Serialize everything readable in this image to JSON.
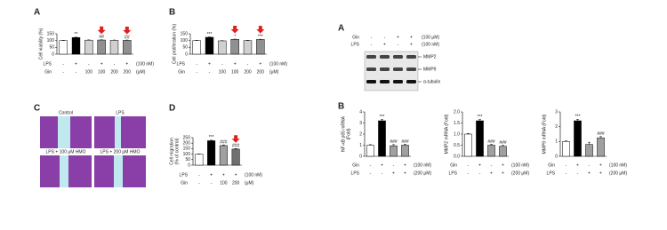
{
  "panel_labels": [
    "A",
    "B",
    "C",
    "D",
    "A",
    "B"
  ],
  "chart_data": [
    {
      "type": "bar",
      "ylabel": [
        "Cell viability (%)"
      ],
      "ylim": [
        0,
        150
      ],
      "yticks": [
        0,
        50,
        100,
        150
      ],
      "values": [
        100,
        122,
        103,
        104,
        102,
        102
      ],
      "errors": [
        2,
        3,
        2,
        2,
        2,
        2
      ],
      "colors": [
        "#ffffff",
        "#000000",
        "#d0d0d0",
        "#909090",
        "#d0d0d0",
        "#909090"
      ],
      "annotations": [
        null,
        "**",
        null,
        "##",
        null,
        "##"
      ],
      "arrows": [
        false,
        false,
        false,
        true,
        false,
        true
      ],
      "arrow_color": "#e0201b",
      "conditions": [
        {
          "name": "LPS",
          "marks": [
            "-",
            "+",
            "-",
            "+",
            "-",
            "+"
          ],
          "unit": "(100 nM)"
        },
        {
          "name": "Gin",
          "marks": [
            "-",
            "-",
            "100",
            "100",
            "200",
            "200"
          ],
          "unit": "(μM)"
        }
      ]
    },
    {
      "type": "bar",
      "ylabel": [
        "Cell proliferation (%)"
      ],
      "ylim": [
        0,
        150
      ],
      "yticks": [
        0,
        50,
        100,
        150
      ],
      "values": [
        100,
        124,
        98,
        109,
        100,
        108
      ],
      "errors": [
        2,
        3,
        2,
        2,
        2,
        2
      ],
      "colors": [
        "#ffffff",
        "#000000",
        "#d0d0d0",
        "#909090",
        "#d0d0d0",
        "#909090"
      ],
      "annotations": [
        null,
        "***",
        null,
        "*",
        null,
        "***"
      ],
      "arrows": [
        false,
        false,
        false,
        true,
        false,
        true
      ],
      "arrow_color": "#e0201b",
      "conditions": [
        {
          "name": "LPS",
          "marks": [
            "-",
            "+",
            "-",
            "+",
            "-",
            "+"
          ],
          "unit": "(100 nM)"
        },
        {
          "name": "Gin",
          "marks": [
            "-",
            "-",
            "100",
            "100",
            "200",
            "200"
          ],
          "unit": "(μM)"
        }
      ]
    },
    {
      "type": "bar",
      "ylabel": [
        "Cell migration",
        "(% of control)"
      ],
      "ylim": [
        0,
        250
      ],
      "yticks": [
        0,
        50,
        100,
        150,
        200,
        250
      ],
      "values": [
        100,
        222,
        178,
        146
      ],
      "errors": [
        3,
        5,
        6,
        5
      ],
      "colors": [
        "#ffffff",
        "#000000",
        "#a0a0a0",
        "#707070"
      ],
      "annotations": [
        null,
        "***",
        "###",
        "###"
      ],
      "arrows": [
        false,
        false,
        false,
        true
      ],
      "arrow_color": "#e0201b",
      "conditions": [
        {
          "name": "LPS",
          "marks": [
            "-",
            "+",
            "+",
            "+"
          ],
          "unit": "(100 nM)"
        },
        {
          "name": "Gin",
          "marks": [
            "-",
            "-",
            "100",
            "200"
          ],
          "unit": "(μM)"
        }
      ]
    },
    {
      "type": "bar",
      "ylabel": [
        "NF-κB p65 mRNA",
        "(Fold)"
      ],
      "ylim": [
        0,
        4
      ],
      "yticks": [
        0,
        1,
        2,
        3,
        4
      ],
      "values": [
        1,
        3.2,
        0.95,
        1.0
      ],
      "errors": [
        0.05,
        0.12,
        0.1,
        0.08
      ],
      "colors": [
        "#ffffff",
        "#000000",
        "#a0a0a0",
        "#a0a0a0"
      ],
      "annotations": [
        null,
        "***",
        "###",
        "###"
      ],
      "conditions": [
        {
          "name": "Gin",
          "marks": [
            "-",
            "+",
            "-",
            "+"
          ],
          "unit": "(100 nM)"
        },
        {
          "name": "LPS",
          "marks": [
            "-",
            "-",
            "+",
            "+"
          ],
          "unit": "(200 μM)"
        }
      ]
    },
    {
      "type": "bar",
      "ylabel": [
        "MMP2 mRNA (Fold)"
      ],
      "ylim": [
        0,
        2
      ],
      "yticks": [
        {
          "value": 0,
          "label": "0.0"
        },
        0.5,
        {
          "value": 1,
          "label": "1.0"
        },
        1.5,
        {
          "value": 2,
          "label": "2.0"
        }
      ],
      "values": [
        1.0,
        1.6,
        0.5,
        0.45
      ],
      "errors": [
        0.03,
        0.06,
        0.04,
        0.04
      ],
      "colors": [
        "#ffffff",
        "#000000",
        "#a0a0a0",
        "#a0a0a0"
      ],
      "annotations": [
        null,
        "***",
        "###",
        "###"
      ],
      "conditions": [
        {
          "name": "Gin",
          "marks": [
            "-",
            "+",
            "-",
            "+"
          ],
          "unit": "(100 nM)"
        },
        {
          "name": "LPS",
          "marks": [
            "-",
            "-",
            "+",
            "+"
          ],
          "unit": "(200 μM)"
        }
      ]
    },
    {
      "type": "bar",
      "ylabel": [
        "MMP9 mRNA (Fold)"
      ],
      "ylim": [
        0,
        3
      ],
      "yticks": [
        0,
        1,
        2,
        3
      ],
      "values": [
        1.0,
        2.4,
        0.8,
        1.25
      ],
      "errors": [
        0.05,
        0.1,
        0.15,
        0.08
      ],
      "colors": [
        "#ffffff",
        "#000000",
        "#a0a0a0",
        "#a0a0a0"
      ],
      "annotations": [
        null,
        "***",
        null,
        "###"
      ],
      "conditions": [
        {
          "name": "Gin",
          "marks": [
            "-",
            "+",
            "-",
            "+"
          ],
          "unit": "(100 nM)"
        },
        {
          "name": "LPS",
          "marks": [
            "-",
            "-",
            "+",
            "+"
          ],
          "unit": "(200 μM)"
        }
      ]
    }
  ],
  "blot": {
    "conditions": [
      {
        "name": "Gin",
        "marks": [
          "-",
          "-",
          "+",
          "+"
        ],
        "unit": "(100 μM)"
      },
      {
        "name": "LPS",
        "marks": [
          "-",
          "+",
          "-",
          "+"
        ],
        "unit": "(100 nM)"
      }
    ],
    "bands": [
      "MMP2",
      "MMP9",
      "α-tubulin"
    ]
  },
  "migration_images": {
    "labels": [
      "Control",
      "LPS",
      "LPS + 100 μM HMO",
      "LPS + 200 μM HMO"
    ]
  }
}
